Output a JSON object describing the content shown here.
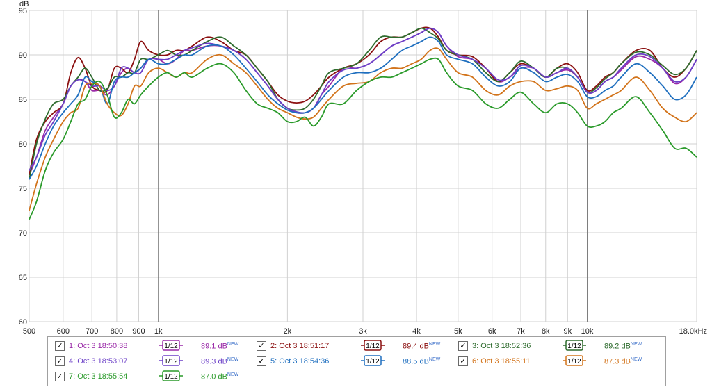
{
  "chart_data": {
    "type": "line",
    "ylabel": "dB",
    "xlabel": "",
    "x_scale": "log",
    "xlim": [
      500,
      18000
    ],
    "ylim": [
      60,
      95
    ],
    "grid": true,
    "y_ticks": [
      60,
      65,
      70,
      75,
      80,
      85,
      90,
      95
    ],
    "y_tick_labels": [
      "60",
      "65",
      "70",
      "75",
      "80",
      "85",
      "90",
      "95"
    ],
    "x_ticks": [
      500,
      600,
      700,
      800,
      900,
      1000,
      2000,
      3000,
      4000,
      5000,
      6000,
      7000,
      8000,
      9000,
      10000,
      18000
    ],
    "x_tick_labels": [
      "500",
      "600",
      "700",
      "800",
      "900",
      "1k",
      "2k",
      "3k",
      "4k",
      "5k",
      "6k",
      "7k",
      "8k",
      "9k",
      "10k",
      "18.0kHz"
    ],
    "x_major": [
      1000,
      10000
    ],
    "series": [
      {
        "name": "1: Oct 3 18:50:38",
        "color": "#9a2aa8",
        "smoothing": "1/12",
        "level": "89.1 dB",
        "x": [
          500,
          520,
          545,
          570,
          600,
          625,
          650,
          675,
          700,
          730,
          760,
          790,
          820,
          850,
          880,
          910,
          950,
          1000,
          1050,
          1100,
          1150,
          1200,
          1300,
          1400,
          1500,
          1600,
          1700,
          1800,
          1900,
          2000,
          2100,
          2200,
          2300,
          2400,
          2500,
          2700,
          2900,
          3100,
          3300,
          3500,
          3700,
          3900,
          4100,
          4300,
          4500,
          4700,
          5000,
          5400,
          5800,
          6200,
          6600,
          7000,
          7500,
          8000,
          8500,
          9000,
          9500,
          10000,
          10500,
          11000,
          11500,
          12000,
          13000,
          14000,
          15000,
          16000,
          17000,
          18000
        ],
        "y": [
          76.5,
          78.5,
          81.5,
          83.0,
          84.5,
          86.5,
          87.2,
          87.0,
          86.0,
          86.0,
          85.5,
          86.5,
          88.0,
          88.5,
          88.0,
          88.5,
          89.5,
          89.5,
          89.0,
          89.5,
          90.5,
          90.5,
          91.0,
          91.0,
          90.5,
          89.5,
          88.0,
          86.5,
          85.0,
          84.0,
          83.5,
          83.5,
          84.0,
          85.5,
          86.5,
          88.5,
          88.5,
          89.0,
          90.0,
          91.0,
          91.5,
          92.0,
          92.5,
          93.0,
          92.5,
          91.0,
          89.8,
          89.5,
          88.5,
          87.0,
          87.5,
          88.5,
          88.5,
          87.5,
          88.0,
          88.3,
          87.5,
          85.8,
          86.0,
          87.0,
          87.5,
          88.3,
          89.8,
          89.5,
          88.5,
          86.8,
          87.5,
          89.5
        ]
      },
      {
        "name": "2: Oct 3 18:51:17",
        "color": "#8b1010",
        "smoothing": "1/12",
        "level": "89.4 dB",
        "x": [
          500,
          520,
          545,
          570,
          600,
          625,
          650,
          675,
          700,
          730,
          760,
          790,
          820,
          850,
          880,
          910,
          950,
          1000,
          1050,
          1100,
          1150,
          1200,
          1300,
          1400,
          1500,
          1600,
          1700,
          1800,
          1900,
          2000,
          2100,
          2200,
          2300,
          2400,
          2500,
          2700,
          2900,
          3100,
          3300,
          3500,
          3700,
          3900,
          4100,
          4300,
          4500,
          4700,
          5000,
          5400,
          5800,
          6200,
          6600,
          7000,
          7500,
          8000,
          8500,
          9000,
          9500,
          10000,
          10500,
          11000,
          11500,
          12000,
          13000,
          14000,
          15000,
          16000,
          17000,
          18000
        ],
        "y": [
          76.5,
          80.5,
          82.5,
          83.5,
          84.5,
          88.0,
          89.7,
          88.5,
          86.5,
          86.0,
          86.0,
          88.5,
          88.5,
          88.0,
          89.5,
          91.5,
          90.5,
          90.0,
          90.0,
          90.5,
          90.5,
          91.0,
          92.0,
          91.5,
          90.5,
          90.0,
          88.5,
          87.0,
          85.5,
          84.8,
          84.6,
          84.8,
          85.5,
          86.5,
          87.5,
          88.5,
          89.0,
          90.0,
          91.5,
          92.0,
          92.0,
          92.5,
          93.0,
          93.0,
          92.0,
          90.5,
          90.0,
          89.8,
          88.5,
          87.0,
          88.0,
          89.0,
          88.5,
          87.5,
          88.5,
          89.0,
          88.0,
          86.0,
          86.5,
          87.5,
          88.0,
          89.0,
          90.5,
          90.5,
          88.5,
          87.5,
          88.5,
          90.5
        ]
      },
      {
        "name": "3: Oct 3 18:52:36",
        "color": "#2d6b2d",
        "smoothing": "1/12",
        "level": "89.2 dB",
        "x": [
          500,
          520,
          545,
          570,
          600,
          625,
          650,
          675,
          700,
          730,
          760,
          790,
          820,
          850,
          880,
          910,
          950,
          1000,
          1050,
          1100,
          1150,
          1200,
          1300,
          1400,
          1500,
          1600,
          1700,
          1800,
          1900,
          2000,
          2100,
          2200,
          2300,
          2400,
          2500,
          2700,
          2900,
          3100,
          3300,
          3500,
          3700,
          3900,
          4100,
          4300,
          4500,
          4700,
          5000,
          5400,
          5800,
          6200,
          6600,
          7000,
          7500,
          8000,
          8500,
          9000,
          9500,
          10000,
          10500,
          11000,
          11500,
          12000,
          13000,
          14000,
          15000,
          16000,
          17000,
          18000
        ],
        "y": [
          76.0,
          80.0,
          82.8,
          84.5,
          85.0,
          86.5,
          87.5,
          88.5,
          87.5,
          86.0,
          86.2,
          87.5,
          87.5,
          88.0,
          88.0,
          89.5,
          89.5,
          90.0,
          90.5,
          90.0,
          90.0,
          90.5,
          91.5,
          92.0,
          91.0,
          90.0,
          88.5,
          87.0,
          85.0,
          84.0,
          83.8,
          84.0,
          85.0,
          86.5,
          88.0,
          88.5,
          89.0,
          90.5,
          92.0,
          92.0,
          92.0,
          92.5,
          93.0,
          92.5,
          91.8,
          90.5,
          90.0,
          89.5,
          88.0,
          87.0,
          88.0,
          89.3,
          88.5,
          87.5,
          88.5,
          88.5,
          87.5,
          85.8,
          86.3,
          87.3,
          88.0,
          89.0,
          90.3,
          90.0,
          88.8,
          87.8,
          88.5,
          90.5
        ]
      },
      {
        "name": "4: Oct 3 18:53:07",
        "color": "#6b3fc7",
        "smoothing": "1/12",
        "level": "89.3 dB",
        "x": [
          500,
          520,
          545,
          570,
          600,
          625,
          650,
          675,
          700,
          730,
          760,
          790,
          820,
          850,
          880,
          910,
          950,
          1000,
          1050,
          1100,
          1150,
          1200,
          1300,
          1400,
          1500,
          1600,
          1700,
          1800,
          1900,
          2000,
          2100,
          2200,
          2300,
          2400,
          2500,
          2700,
          2900,
          3100,
          3300,
          3500,
          3700,
          3900,
          4100,
          4300,
          4500,
          4700,
          5000,
          5400,
          5800,
          6200,
          6600,
          7000,
          7500,
          8000,
          8500,
          9000,
          9500,
          10000,
          10500,
          11000,
          11500,
          12000,
          13000,
          14000,
          15000,
          16000,
          17000,
          18000
        ],
        "y": [
          77.0,
          78.5,
          81.0,
          82.5,
          84.5,
          86.5,
          87.2,
          87.0,
          86.5,
          86.5,
          86.0,
          86.5,
          88.5,
          88.5,
          88.0,
          88.0,
          89.5,
          89.5,
          89.5,
          90.0,
          90.5,
          90.8,
          91.3,
          91.0,
          90.5,
          89.5,
          88.0,
          86.5,
          85.0,
          84.0,
          83.6,
          83.5,
          84.0,
          85.5,
          87.0,
          88.3,
          88.5,
          89.0,
          90.0,
          91.0,
          91.5,
          92.0,
          92.5,
          93.0,
          92.5,
          91.0,
          90.0,
          89.5,
          88.5,
          87.2,
          87.5,
          88.8,
          88.5,
          87.5,
          88.0,
          88.5,
          87.5,
          85.8,
          86.0,
          87.0,
          87.5,
          88.5,
          90.0,
          89.8,
          88.5,
          87.0,
          87.5,
          89.5
        ]
      },
      {
        "name": "5: Oct 3 18:54:36",
        "color": "#1f6fbf",
        "smoothing": "1/12",
        "level": "88.5 dB",
        "x": [
          500,
          520,
          545,
          570,
          600,
          625,
          650,
          675,
          700,
          730,
          760,
          790,
          820,
          850,
          880,
          910,
          950,
          1000,
          1050,
          1100,
          1150,
          1200,
          1300,
          1400,
          1500,
          1600,
          1700,
          1800,
          1900,
          2000,
          2100,
          2200,
          2300,
          2400,
          2500,
          2700,
          2900,
          3100,
          3300,
          3500,
          3700,
          3900,
          4100,
          4300,
          4500,
          4700,
          5000,
          5400,
          5800,
          6200,
          6600,
          7000,
          7500,
          8000,
          8500,
          9000,
          9500,
          10000,
          10500,
          11000,
          11500,
          12000,
          13000,
          14000,
          15000,
          16000,
          17000,
          18000
        ],
        "y": [
          76.0,
          77.5,
          80.0,
          82.0,
          83.5,
          84.5,
          85.5,
          87.5,
          87.0,
          86.5,
          84.5,
          87.0,
          87.5,
          87.5,
          88.0,
          88.5,
          89.5,
          89.0,
          89.0,
          89.5,
          90.0,
          90.0,
          91.0,
          91.0,
          90.0,
          88.5,
          87.0,
          85.5,
          84.5,
          83.8,
          83.5,
          83.5,
          84.0,
          85.0,
          86.0,
          87.5,
          88.0,
          88.0,
          88.5,
          89.5,
          90.5,
          91.0,
          91.5,
          92.0,
          91.5,
          90.0,
          89.5,
          89.0,
          87.5,
          86.5,
          87.0,
          88.5,
          88.0,
          87.0,
          87.5,
          87.8,
          87.0,
          85.3,
          85.3,
          86.0,
          86.5,
          87.5,
          89.0,
          88.0,
          86.5,
          85.0,
          85.5,
          87.5
        ]
      },
      {
        "name": "6: Oct 3 18:55:11",
        "color": "#d2731a",
        "smoothing": "1/12",
        "level": "87.3 dB",
        "x": [
          500,
          520,
          545,
          570,
          600,
          625,
          650,
          675,
          700,
          730,
          760,
          790,
          820,
          850,
          880,
          910,
          950,
          1000,
          1050,
          1100,
          1150,
          1200,
          1300,
          1400,
          1500,
          1600,
          1700,
          1800,
          1900,
          2000,
          2100,
          2200,
          2300,
          2400,
          2500,
          2700,
          2900,
          3100,
          3300,
          3500,
          3700,
          3900,
          4100,
          4300,
          4500,
          4700,
          5000,
          5400,
          5800,
          6200,
          6600,
          7000,
          7500,
          8000,
          8500,
          9000,
          9500,
          10000,
          10500,
          11000,
          11500,
          12000,
          13000,
          14000,
          15000,
          16000,
          17000,
          18000
        ],
        "y": [
          72.5,
          75.5,
          78.5,
          80.5,
          82.5,
          83.5,
          84.0,
          86.5,
          86.8,
          86.5,
          84.5,
          83.5,
          83.2,
          84.5,
          86.5,
          86.5,
          88.0,
          88.5,
          88.0,
          87.5,
          88.0,
          88.0,
          89.5,
          90.0,
          89.0,
          88.0,
          86.5,
          85.0,
          84.0,
          83.5,
          83.0,
          82.8,
          83.0,
          84.0,
          85.0,
          86.5,
          86.8,
          87.0,
          88.0,
          88.5,
          88.5,
          89.0,
          89.5,
          90.5,
          90.7,
          89.5,
          88.0,
          87.5,
          86.0,
          85.5,
          86.5,
          87.0,
          87.0,
          86.0,
          86.2,
          86.5,
          86.0,
          84.0,
          84.5,
          85.0,
          85.5,
          86.0,
          87.5,
          86.0,
          84.0,
          83.0,
          82.5,
          83.5
        ]
      },
      {
        "name": "7: Oct 3 18:55:54",
        "color": "#2a9a2a",
        "smoothing": "1/12",
        "level": "87.0 dB",
        "x": [
          500,
          520,
          545,
          570,
          600,
          625,
          650,
          675,
          700,
          730,
          760,
          790,
          820,
          850,
          880,
          910,
          950,
          1000,
          1050,
          1100,
          1150,
          1200,
          1300,
          1400,
          1500,
          1600,
          1700,
          1800,
          1900,
          2000,
          2100,
          2200,
          2300,
          2400,
          2500,
          2700,
          2900,
          3100,
          3300,
          3500,
          3700,
          3900,
          4100,
          4300,
          4500,
          4700,
          5000,
          5400,
          5800,
          6200,
          6600,
          7000,
          7500,
          8000,
          8500,
          9000,
          9500,
          10000,
          10500,
          11000,
          11500,
          12000,
          13000,
          14000,
          15000,
          16000,
          17000,
          18000
        ],
        "y": [
          71.5,
          73.5,
          77.0,
          79.0,
          80.5,
          82.5,
          84.5,
          85.0,
          86.5,
          87.0,
          85.5,
          83.0,
          83.5,
          85.0,
          84.5,
          85.5,
          86.5,
          87.5,
          88.0,
          87.5,
          88.0,
          87.5,
          88.5,
          89.0,
          88.0,
          86.0,
          84.5,
          84.0,
          83.5,
          82.5,
          82.5,
          83.0,
          82.0,
          83.0,
          84.5,
          84.5,
          86.0,
          87.0,
          87.5,
          87.5,
          88.0,
          88.5,
          89.0,
          89.5,
          89.5,
          88.0,
          86.5,
          86.0,
          84.5,
          84.0,
          85.0,
          85.8,
          84.5,
          83.5,
          84.5,
          84.5,
          83.5,
          82.0,
          82.0,
          82.5,
          83.5,
          84.0,
          85.3,
          83.5,
          81.5,
          79.5,
          79.5,
          78.5
        ]
      }
    ]
  }
}
